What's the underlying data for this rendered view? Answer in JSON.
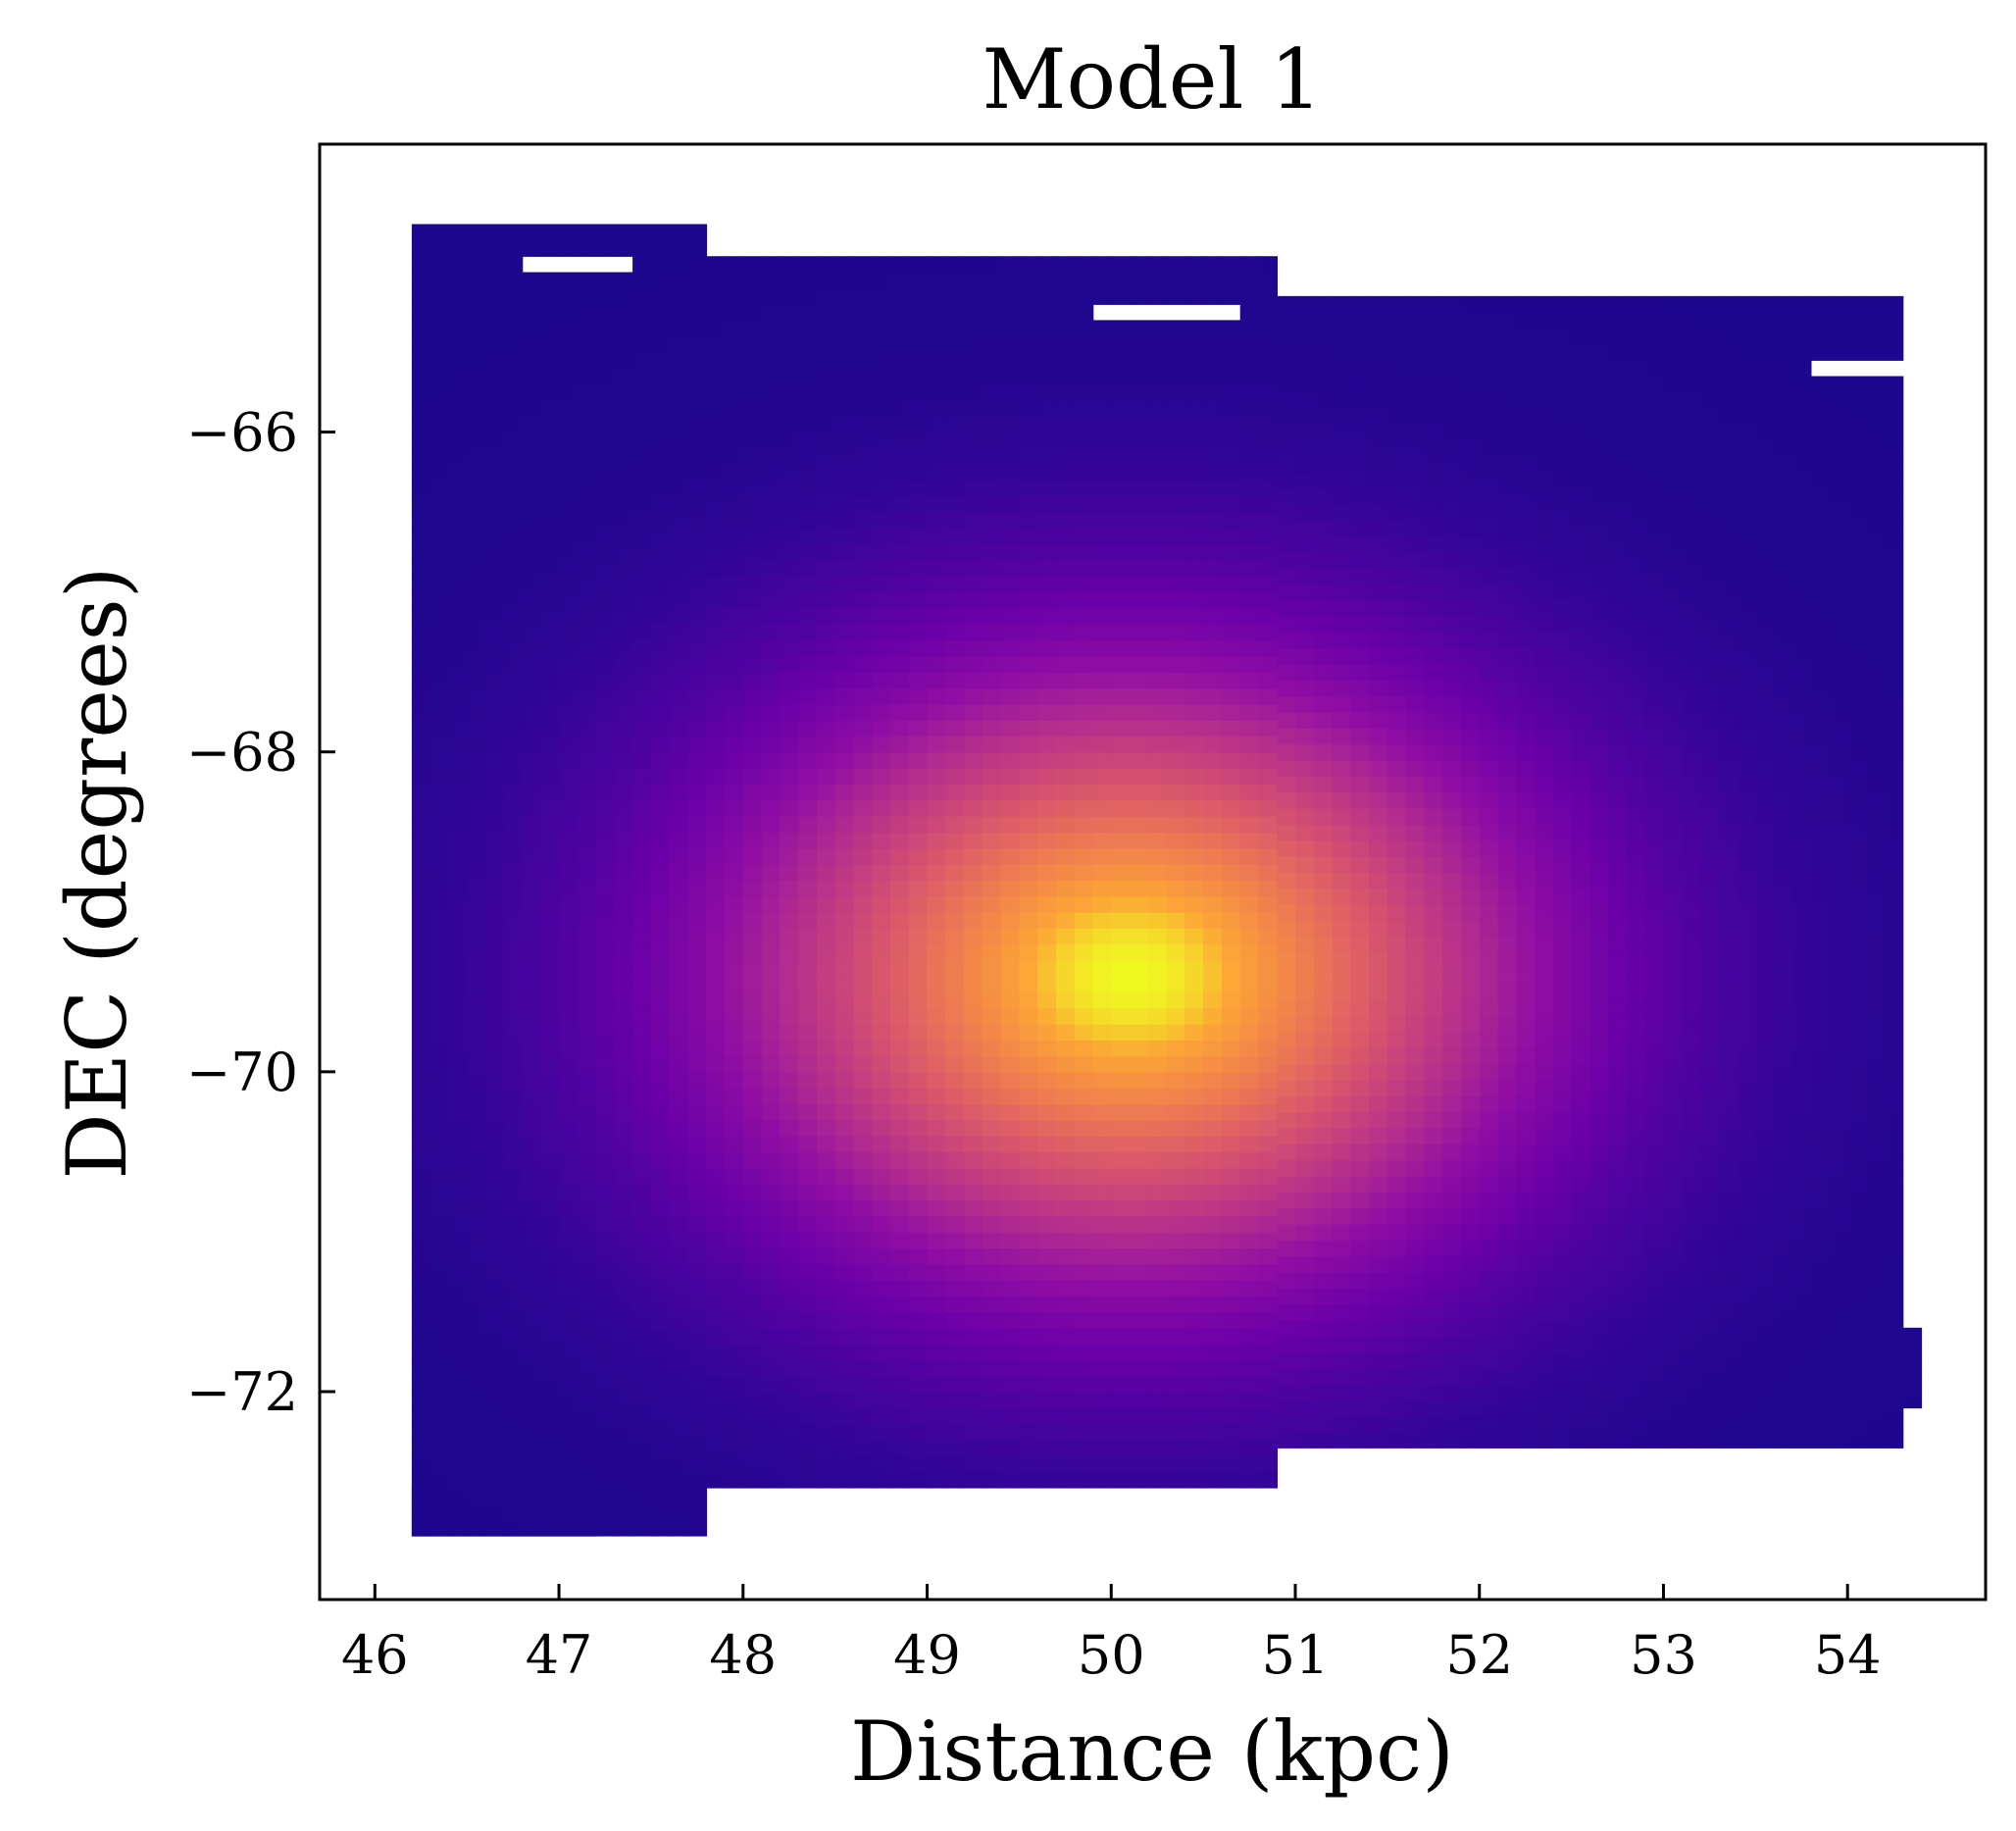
{
  "chart_data": {
    "type": "heatmap",
    "title": "Model 1",
    "xlabel": "Distance (kpc)",
    "ylabel": "DEC (degrees)",
    "xlim": [
      45.7,
      54.75
    ],
    "ylim": [
      -73.3,
      -64.2
    ],
    "x_ticks": [
      46,
      47,
      48,
      49,
      50,
      51,
      52,
      53,
      54
    ],
    "y_ticks": [
      -72,
      -70,
      -68,
      -66
    ],
    "x_tick_labels": [
      "46",
      "47",
      "48",
      "49",
      "50",
      "51",
      "52",
      "53",
      "54"
    ],
    "y_tick_labels": [
      "−72",
      "−70",
      "−68",
      "−66"
    ],
    "grid": false,
    "colormap": "plasma",
    "density_peak": {
      "distance_kpc": 50.1,
      "dec_deg": -69.4
    },
    "density_sigma": {
      "distance_kpc": 1.55,
      "dec_deg": 1.35
    },
    "footprint": [
      {
        "x0": 46.2,
        "x1": 47.8,
        "y0": -64.7,
        "y1": -72.9
      },
      {
        "x0": 47.8,
        "x1": 50.9,
        "y0": -64.95,
        "y1": -72.6
      },
      {
        "x0": 50.9,
        "x1": 54.3,
        "y0": -65.2,
        "y1": -72.35
      },
      {
        "x0": 46.2,
        "x1": 47.15,
        "y0": -72.6,
        "y1": -72.9
      },
      {
        "x0": 54.2,
        "x1": 54.4,
        "y0": -71.6,
        "y1": -72.1
      }
    ],
    "gaps": [
      {
        "x0": 46.8,
        "x1": 47.4,
        "y0": -64.94,
        "y1": -65.04
      },
      {
        "x0": 49.95,
        "x1": 50.75,
        "y0": -65.2,
        "y1": -65.3
      },
      {
        "x0": 53.85,
        "x1": 54.3,
        "y0": -65.55,
        "y1": -65.62
      }
    ]
  }
}
